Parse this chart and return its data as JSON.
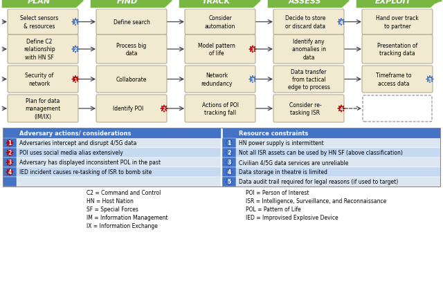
{
  "title_phases": [
    "PLAN",
    "FIND",
    "TRACK",
    "ASSESS",
    "EXPLOIT"
  ],
  "phase_color": "#78b842",
  "phase_text_color": "white",
  "box_fill": "#f2ead0",
  "box_edge": "#aaa080",
  "plan_boxes": [
    {
      "text": "Select sensors\n& resources",
      "badge": "1",
      "badge_type": "blue"
    },
    {
      "text": "Define C2\nrelationship\nwith HN SF",
      "badge": "2",
      "badge_type": "blue"
    },
    {
      "text": "Security of\nnetwork",
      "badge": "1",
      "badge_type": "red"
    },
    {
      "text": "Plan for data\nmanagement\n(IM/IX)",
      "badge": null,
      "badge_type": null
    }
  ],
  "find_boxes": [
    {
      "text": "Define search",
      "badge": null,
      "badge_type": null
    },
    {
      "text": "Process big\ndata",
      "badge": null,
      "badge_type": null
    },
    {
      "text": "Collaborate",
      "badge": null,
      "badge_type": null
    },
    {
      "text": "Identify POI",
      "badge": "2",
      "badge_type": "red"
    }
  ],
  "track_boxes": [
    {
      "text": "Consider\nautomation",
      "badge": null,
      "badge_type": null
    },
    {
      "text": "Model pattern\nof life",
      "badge": "3",
      "badge_type": "red"
    },
    {
      "text": "Network\nredundancy",
      "badge": "3",
      "badge_type": "blue"
    },
    {
      "text": "Actions of POI\ntracking fall",
      "badge": null,
      "badge_type": null
    }
  ],
  "assess_boxes": [
    {
      "text": "Decide to store\nor discard data",
      "badge": "4",
      "badge_type": "blue"
    },
    {
      "text": "Identify any\nanomalies in\ndata",
      "badge": null,
      "badge_type": null
    },
    {
      "text": "Data transfer\nfrom tactical\nedge to process",
      "badge": null,
      "badge_type": null
    },
    {
      "text": "Consider re-\ntasking ISR",
      "badge": "4",
      "badge_type": "red"
    }
  ],
  "exploit_boxes": [
    {
      "text": "Hand over track\nto partner",
      "badge": null,
      "badge_type": null
    },
    {
      "text": "Presentation of\ntracking data",
      "badge": null,
      "badge_type": null
    },
    {
      "text": "Timeframe to\naccess data",
      "badge": "5",
      "badge_type": "blue"
    },
    {
      "text": "",
      "badge": null,
      "badge_type": null,
      "dashed": true
    }
  ],
  "adv_header": "Adversary actions/ considerations",
  "res_header": "Resource constraints",
  "header_bg": "#4472c4",
  "row_colors": [
    "#dce6f1",
    "#c5d9f1"
  ],
  "adv_items": [
    {
      "num": "1",
      "text": "Adversaries intercept and disrupt 4/5G data"
    },
    {
      "num": "2",
      "text": "POI uses social media alias extensively"
    },
    {
      "num": "3",
      "text": "Adversary has displayed inconsistent POL in the past"
    },
    {
      "num": "4",
      "text": "IED incident causes re-tasking of ISR to bomb site"
    }
  ],
  "res_items": [
    {
      "num": "1",
      "text": "HN power supply is intermittent"
    },
    {
      "num": "2",
      "text": "Not all ISR assets can be used by HN SF (above classification)"
    },
    {
      "num": "3",
      "text": "Civilian 4/5G data services are unreliable"
    },
    {
      "num": "4",
      "text": "Data storage in theatre is limited"
    },
    {
      "num": "5",
      "text": "Data audit trail required for legal reasons (if used to target)"
    }
  ],
  "abbrevs_left": [
    "C2 = Command and Control",
    "HN = Host Nation",
    "SF = Special Forces",
    "IM = Information Management",
    "IX = Information Exchange"
  ],
  "abbrevs_right": [
    "POI = Person of Interest",
    "ISR = Intelligence, Surveillance, and Reconnaissance",
    "POL = Pattern of Life",
    "IED = Improvised Explosive Device"
  ]
}
